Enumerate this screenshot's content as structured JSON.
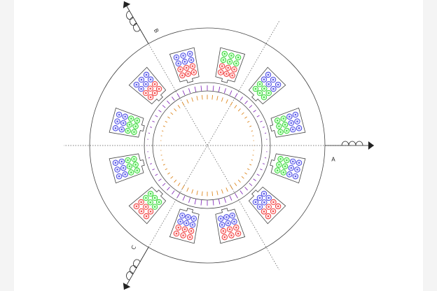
{
  "phases": [
    {
      "label": "A"
    },
    {
      "label": "B"
    },
    {
      "label": "C"
    }
  ]
}
